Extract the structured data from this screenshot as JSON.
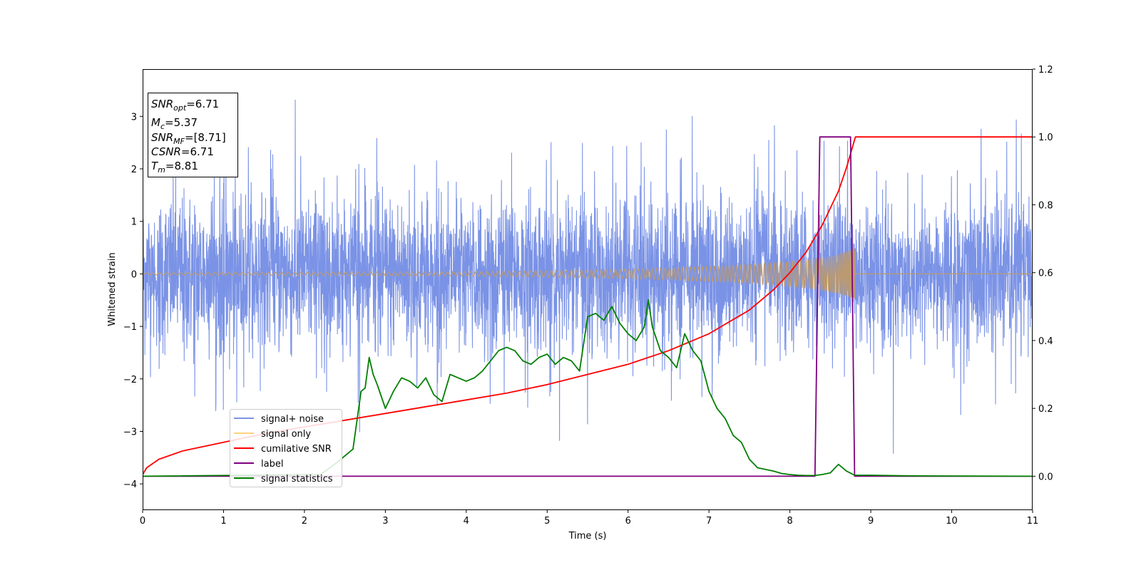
{
  "chart_data": {
    "type": "line",
    "xlabel": "Time (s)",
    "ylabel": "Whitened strain",
    "xlim": [
      0,
      11
    ],
    "ylim_left": [
      -4.5,
      3.9
    ],
    "ylim_right": [
      -0.1,
      1.2
    ],
    "x_ticks": [
      "0",
      "1",
      "2",
      "3",
      "4",
      "5",
      "6",
      "7",
      "8",
      "9",
      "10",
      "11"
    ],
    "y_left_ticks": [
      "3",
      "2",
      "1",
      "0",
      "−1",
      "−2",
      "−3",
      "−4"
    ],
    "y_left_tick_values": [
      3,
      2,
      1,
      0,
      -1,
      -2,
      -3,
      -4
    ],
    "y_right_ticks": [
      "1.2",
      "1.0",
      "0.8",
      "0.6",
      "0.4",
      "0.2",
      "0.0"
    ],
    "y_right_tick_values": [
      1.2,
      1.0,
      0.8,
      0.6,
      0.4,
      0.2,
      0.0
    ],
    "info_box": {
      "snr_opt": {
        "base": "SNR",
        "sub": "opt",
        "value": "=6.71"
      },
      "mc": {
        "base": "M",
        "sub": "c",
        "value": "=5.37"
      },
      "snr_mf": {
        "base": "SNR",
        "sub": "MF",
        "value": "=[8.71]"
      },
      "csnr": {
        "base": "CSNR",
        "value": "=6.71"
      },
      "tm": {
        "base": "T",
        "sub": "m",
        "value": "=8.81"
      }
    },
    "legend": [
      {
        "label": "signal+ noise",
        "color": "#7b93e6"
      },
      {
        "label": "signal only",
        "color": "#ffd27f"
      },
      {
        "label": "cumilative SNR",
        "color": "#ff0000"
      },
      {
        "label": "label",
        "color": "#800080"
      },
      {
        "label": "signal statistics",
        "color": "#008000"
      }
    ],
    "series": [
      {
        "name": "signal+ noise",
        "axis": "left",
        "color": "#7b93e6",
        "kind": "noise",
        "x_range": [
          0,
          11
        ],
        "approx_std": 0.75,
        "approx_extremes": [
          -4.2,
          3.35
        ]
      },
      {
        "name": "signal only",
        "axis": "left",
        "color": "#bb9a72",
        "kind": "chirp",
        "t_merge": 8.81,
        "envelope": [
          [
            0,
            0.02
          ],
          [
            2,
            0.03
          ],
          [
            4,
            0.04
          ],
          [
            5,
            0.06
          ],
          [
            6,
            0.09
          ],
          [
            7,
            0.14
          ],
          [
            7.5,
            0.18
          ],
          [
            8,
            0.24
          ],
          [
            8.3,
            0.29
          ],
          [
            8.6,
            0.37
          ],
          [
            8.81,
            0.5
          ]
        ]
      },
      {
        "name": "cumilative SNR",
        "axis": "right",
        "color": "#ff0000",
        "x": [
          0,
          0.05,
          0.2,
          0.5,
          1,
          1.5,
          2,
          2.5,
          3,
          3.5,
          4,
          4.5,
          5,
          5.5,
          6,
          6.5,
          7,
          7.5,
          7.8,
          8,
          8.2,
          8.4,
          8.6,
          8.7,
          8.81,
          9,
          10,
          11
        ],
        "y": [
          0.005,
          0.025,
          0.05,
          0.075,
          0.1,
          0.125,
          0.145,
          0.165,
          0.185,
          0.205,
          0.225,
          0.245,
          0.27,
          0.3,
          0.33,
          0.37,
          0.42,
          0.49,
          0.55,
          0.6,
          0.66,
          0.74,
          0.84,
          0.91,
          1.0,
          1.0,
          1.0,
          1.0
        ]
      },
      {
        "name": "label",
        "axis": "right",
        "color": "#800080",
        "x": [
          0,
          8.31,
          8.37,
          8.75,
          8.8,
          11
        ],
        "y": [
          0,
          0,
          1,
          1,
          0,
          0
        ]
      },
      {
        "name": "signal statistics",
        "axis": "right",
        "color": "#008000",
        "x": [
          0,
          2.2,
          2.4,
          2.5,
          2.6,
          2.7,
          2.75,
          2.8,
          2.85,
          2.9,
          3,
          3.1,
          3.2,
          3.3,
          3.4,
          3.5,
          3.6,
          3.7,
          3.8,
          3.9,
          4,
          4.1,
          4.2,
          4.3,
          4.4,
          4.5,
          4.6,
          4.7,
          4.8,
          4.9,
          5,
          5.1,
          5.2,
          5.3,
          5.4,
          5.5,
          5.6,
          5.7,
          5.8,
          5.9,
          6,
          6.1,
          6.2,
          6.25,
          6.3,
          6.4,
          6.5,
          6.6,
          6.7,
          6.8,
          6.9,
          7,
          7.1,
          7.2,
          7.3,
          7.4,
          7.5,
          7.6,
          7.7,
          7.8,
          7.9,
          8,
          8.1,
          8.2,
          8.3,
          8.4,
          8.5,
          8.6,
          8.7,
          8.8,
          9,
          9.5,
          11
        ],
        "y": [
          0.0,
          0.005,
          0.04,
          0.06,
          0.08,
          0.25,
          0.26,
          0.35,
          0.3,
          0.27,
          0.2,
          0.25,
          0.29,
          0.28,
          0.26,
          0.29,
          0.24,
          0.22,
          0.3,
          0.29,
          0.28,
          0.29,
          0.31,
          0.34,
          0.37,
          0.38,
          0.37,
          0.34,
          0.33,
          0.35,
          0.36,
          0.33,
          0.35,
          0.34,
          0.31,
          0.47,
          0.48,
          0.46,
          0.5,
          0.45,
          0.42,
          0.4,
          0.44,
          0.52,
          0.44,
          0.37,
          0.35,
          0.32,
          0.42,
          0.37,
          0.34,
          0.25,
          0.2,
          0.17,
          0.12,
          0.1,
          0.05,
          0.025,
          0.02,
          0.015,
          0.008,
          0.005,
          0.003,
          0.002,
          0.002,
          0.005,
          0.01,
          0.035,
          0.015,
          0.003,
          0.003,
          0.001,
          0.0
        ]
      }
    ]
  }
}
